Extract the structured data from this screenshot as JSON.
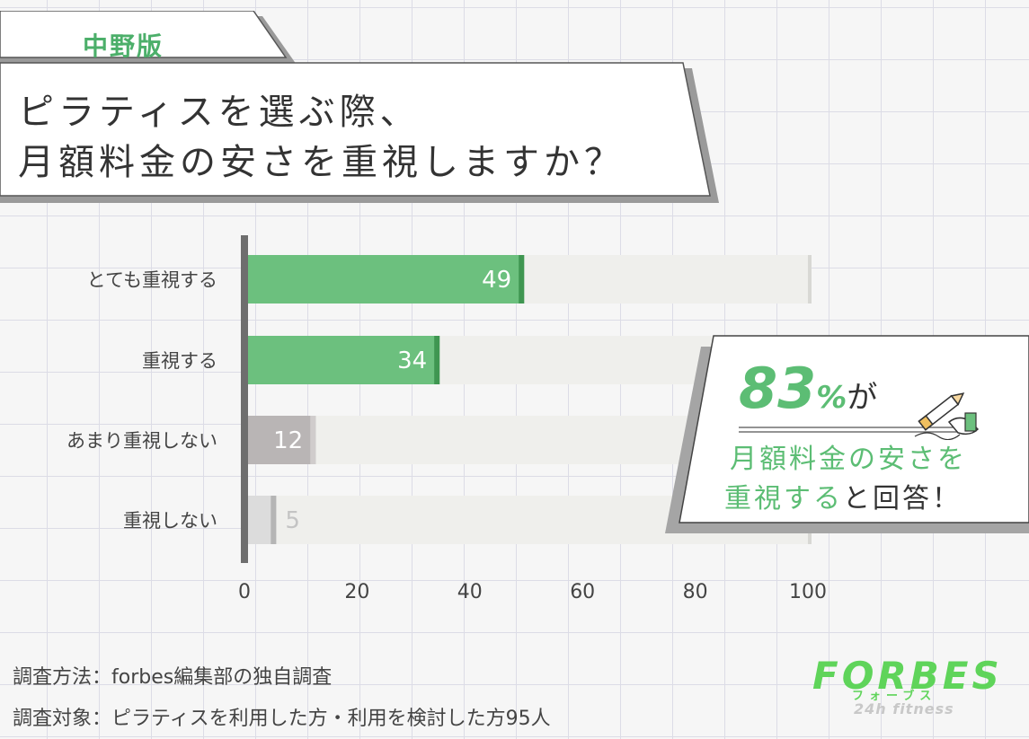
{
  "edition_label": "中野版",
  "title": {
    "line1": "ピラティスを選ぶ際、",
    "line2": "月額料金の安さを重視しますか？"
  },
  "chart_data": {
    "type": "bar",
    "orientation": "horizontal",
    "categories": [
      "とても重視する",
      "重視する",
      "あまり重視しない",
      "重視しない"
    ],
    "values": [
      49,
      34,
      12,
      5
    ],
    "xlim": [
      0,
      100
    ],
    "x_ticks": [
      "0",
      "20",
      "40",
      "60",
      "80",
      "100"
    ],
    "grid": false,
    "colors": {
      "positive": "#6cc07e",
      "positive_edge": "#3f9651",
      "negative_dark": "#b9b5b5",
      "negative_light": "#dcdcdc",
      "track": "#efefec"
    }
  },
  "callout": {
    "percent": "83",
    "percent_sign": "%",
    "particle": "が",
    "line1": "月額料金の安さを",
    "line2_highlight": "重視する",
    "line2_rest": "と回答！",
    "icon": "pencil-icon"
  },
  "footnotes": {
    "method": "調査方法：forbes編集部の独自調査",
    "target": "調査対象：ピラティスを利用した方・利用を検討した方95人"
  },
  "logo": {
    "main": "FORBES",
    "kana": "フォーブス",
    "sub": "24h fitness"
  }
}
